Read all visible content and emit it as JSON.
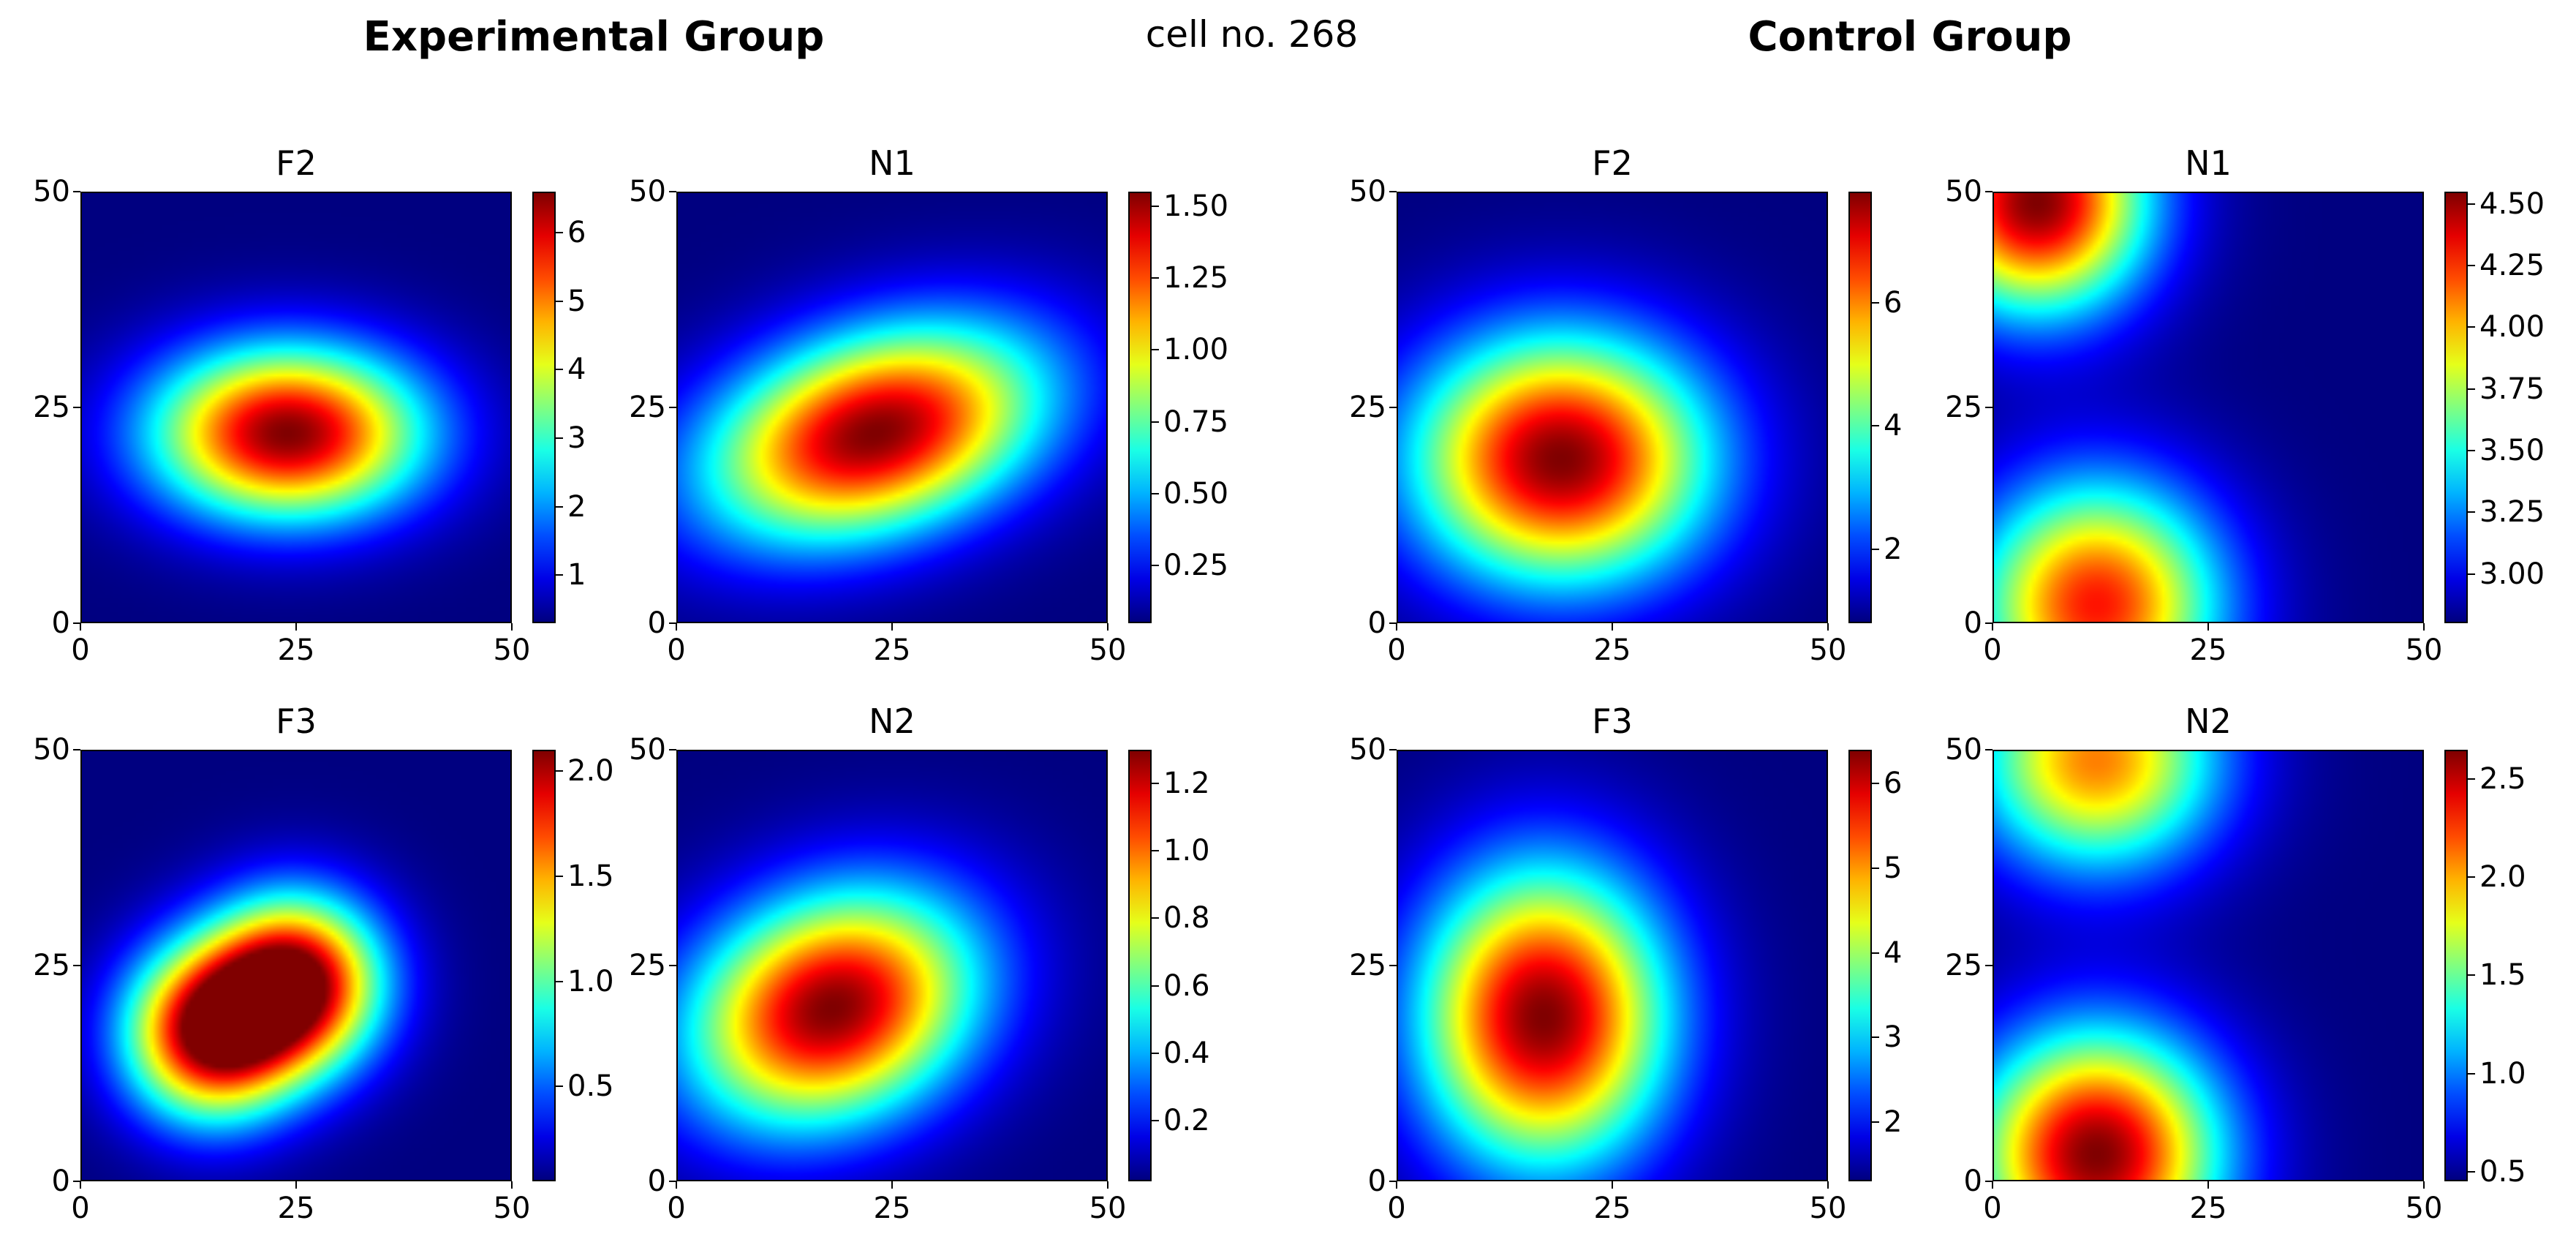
{
  "figure": {
    "suptitle": "cell no. 268",
    "group_titles": [
      "Experimental Group",
      "Control Group"
    ]
  },
  "chart_data": [
    {
      "type": "heatmap",
      "group": "Experimental Group",
      "title": "F2",
      "xlim": [
        0,
        50
      ],
      "ylim": [
        0,
        50
      ],
      "xticks": [
        "0",
        "25",
        "50"
      ],
      "yticks": [
        "0",
        "25",
        "50"
      ],
      "colormap": "jet",
      "clim": [
        0.3,
        6.6
      ],
      "colorbar_ticks": [
        "1",
        "2",
        "3",
        "4",
        "5",
        "6"
      ],
      "colorbar_values": [
        1,
        2,
        3,
        4,
        5,
        6
      ],
      "peaks": [
        {
          "x": 24,
          "y": 22,
          "value": 6.6
        }
      ]
    },
    {
      "type": "heatmap",
      "group": "Experimental Group",
      "title": "N1",
      "xlim": [
        0,
        50
      ],
      "ylim": [
        0,
        50
      ],
      "xticks": [
        "0",
        "25",
        "50"
      ],
      "yticks": [
        "0",
        "25",
        "50"
      ],
      "colormap": "jet",
      "clim": [
        0.05,
        1.55
      ],
      "colorbar_ticks": [
        "0.25",
        "0.50",
        "0.75",
        "1.00",
        "1.25",
        "1.50"
      ],
      "colorbar_values": [
        0.25,
        0.5,
        0.75,
        1.0,
        1.25,
        1.5
      ],
      "peaks": [
        {
          "x": 23,
          "y": 22,
          "value": 1.55
        }
      ]
    },
    {
      "type": "heatmap",
      "group": "Control Group",
      "title": "F2",
      "xlim": [
        0,
        50
      ],
      "ylim": [
        0,
        50
      ],
      "xticks": [
        "0",
        "25",
        "50"
      ],
      "yticks": [
        "0",
        "25",
        "50"
      ],
      "colormap": "jet",
      "clim": [
        0.8,
        7.8
      ],
      "colorbar_ticks": [
        "2",
        "4",
        "6"
      ],
      "colorbar_values": [
        2,
        4,
        6
      ],
      "peaks": [
        {
          "x": 19,
          "y": 19,
          "value": 7.8
        }
      ]
    },
    {
      "type": "heatmap",
      "group": "Control Group",
      "title": "N1",
      "xlim": [
        0,
        50
      ],
      "ylim": [
        0,
        50
      ],
      "xticks": [
        "0",
        "25",
        "50"
      ],
      "yticks": [
        "0",
        "25",
        "50"
      ],
      "colormap": "jet",
      "clim": [
        2.8,
        4.55
      ],
      "colorbar_ticks": [
        "3.00",
        "3.25",
        "3.50",
        "3.75",
        "4.00",
        "4.25",
        "4.50"
      ],
      "colorbar_values": [
        3.0,
        3.25,
        3.5,
        3.75,
        4.0,
        4.25,
        4.5
      ],
      "peaks": [
        {
          "x": 5,
          "y": 49,
          "value": 4.55
        },
        {
          "x": 12,
          "y": 2,
          "value": 4.3
        }
      ]
    },
    {
      "type": "heatmap",
      "group": "Experimental Group",
      "title": "F3",
      "xlim": [
        0,
        50
      ],
      "ylim": [
        0,
        50
      ],
      "xticks": [
        "0",
        "25",
        "50"
      ],
      "yticks": [
        "0",
        "25",
        "50"
      ],
      "colormap": "jet",
      "clim": [
        0.05,
        2.1
      ],
      "colorbar_ticks": [
        "0.5",
        "1.0",
        "1.5",
        "2.0"
      ],
      "colorbar_values": [
        0.5,
        1.0,
        1.5,
        2.0
      ],
      "peaks": [
        {
          "x": 15,
          "y": 17,
          "value": 2.05
        },
        {
          "x": 25,
          "y": 23,
          "value": 2.1
        }
      ]
    },
    {
      "type": "heatmap",
      "group": "Experimental Group",
      "title": "N2",
      "xlim": [
        0,
        50
      ],
      "ylim": [
        0,
        50
      ],
      "xticks": [
        "0",
        "25",
        "50"
      ],
      "yticks": [
        "0",
        "25",
        "50"
      ],
      "colormap": "jet",
      "clim": [
        0.02,
        1.3
      ],
      "colorbar_ticks": [
        "0.2",
        "0.4",
        "0.6",
        "0.8",
        "1.0",
        "1.2"
      ],
      "colorbar_values": [
        0.2,
        0.4,
        0.6,
        0.8,
        1.0,
        1.2
      ],
      "peaks": [
        {
          "x": 18,
          "y": 20,
          "value": 1.3
        }
      ]
    },
    {
      "type": "heatmap",
      "group": "Control Group",
      "title": "F3",
      "xlim": [
        0,
        50
      ],
      "ylim": [
        0,
        50
      ],
      "xticks": [
        "0",
        "25",
        "50"
      ],
      "yticks": [
        "0",
        "25",
        "50"
      ],
      "colormap": "jet",
      "clim": [
        1.3,
        6.4
      ],
      "colorbar_ticks": [
        "2",
        "3",
        "4",
        "5",
        "6"
      ],
      "colorbar_values": [
        2,
        3,
        4,
        5,
        6
      ],
      "peaks": [
        {
          "x": 17,
          "y": 19,
          "value": 6.4
        }
      ]
    },
    {
      "type": "heatmap",
      "group": "Control Group",
      "title": "N2",
      "xlim": [
        0,
        50
      ],
      "ylim": [
        0,
        50
      ],
      "xticks": [
        "0",
        "25",
        "50"
      ],
      "yticks": [
        "0",
        "25",
        "50"
      ],
      "colormap": "jet",
      "clim": [
        0.45,
        2.65
      ],
      "colorbar_ticks": [
        "0.5",
        "1.0",
        "1.5",
        "2.0",
        "2.5"
      ],
      "colorbar_values": [
        0.5,
        1.0,
        1.5,
        2.0,
        2.5
      ],
      "peaks": [
        {
          "x": 12,
          "y": 3,
          "value": 2.65
        },
        {
          "x": 12,
          "y": 49,
          "value": 2.1
        }
      ]
    }
  ]
}
